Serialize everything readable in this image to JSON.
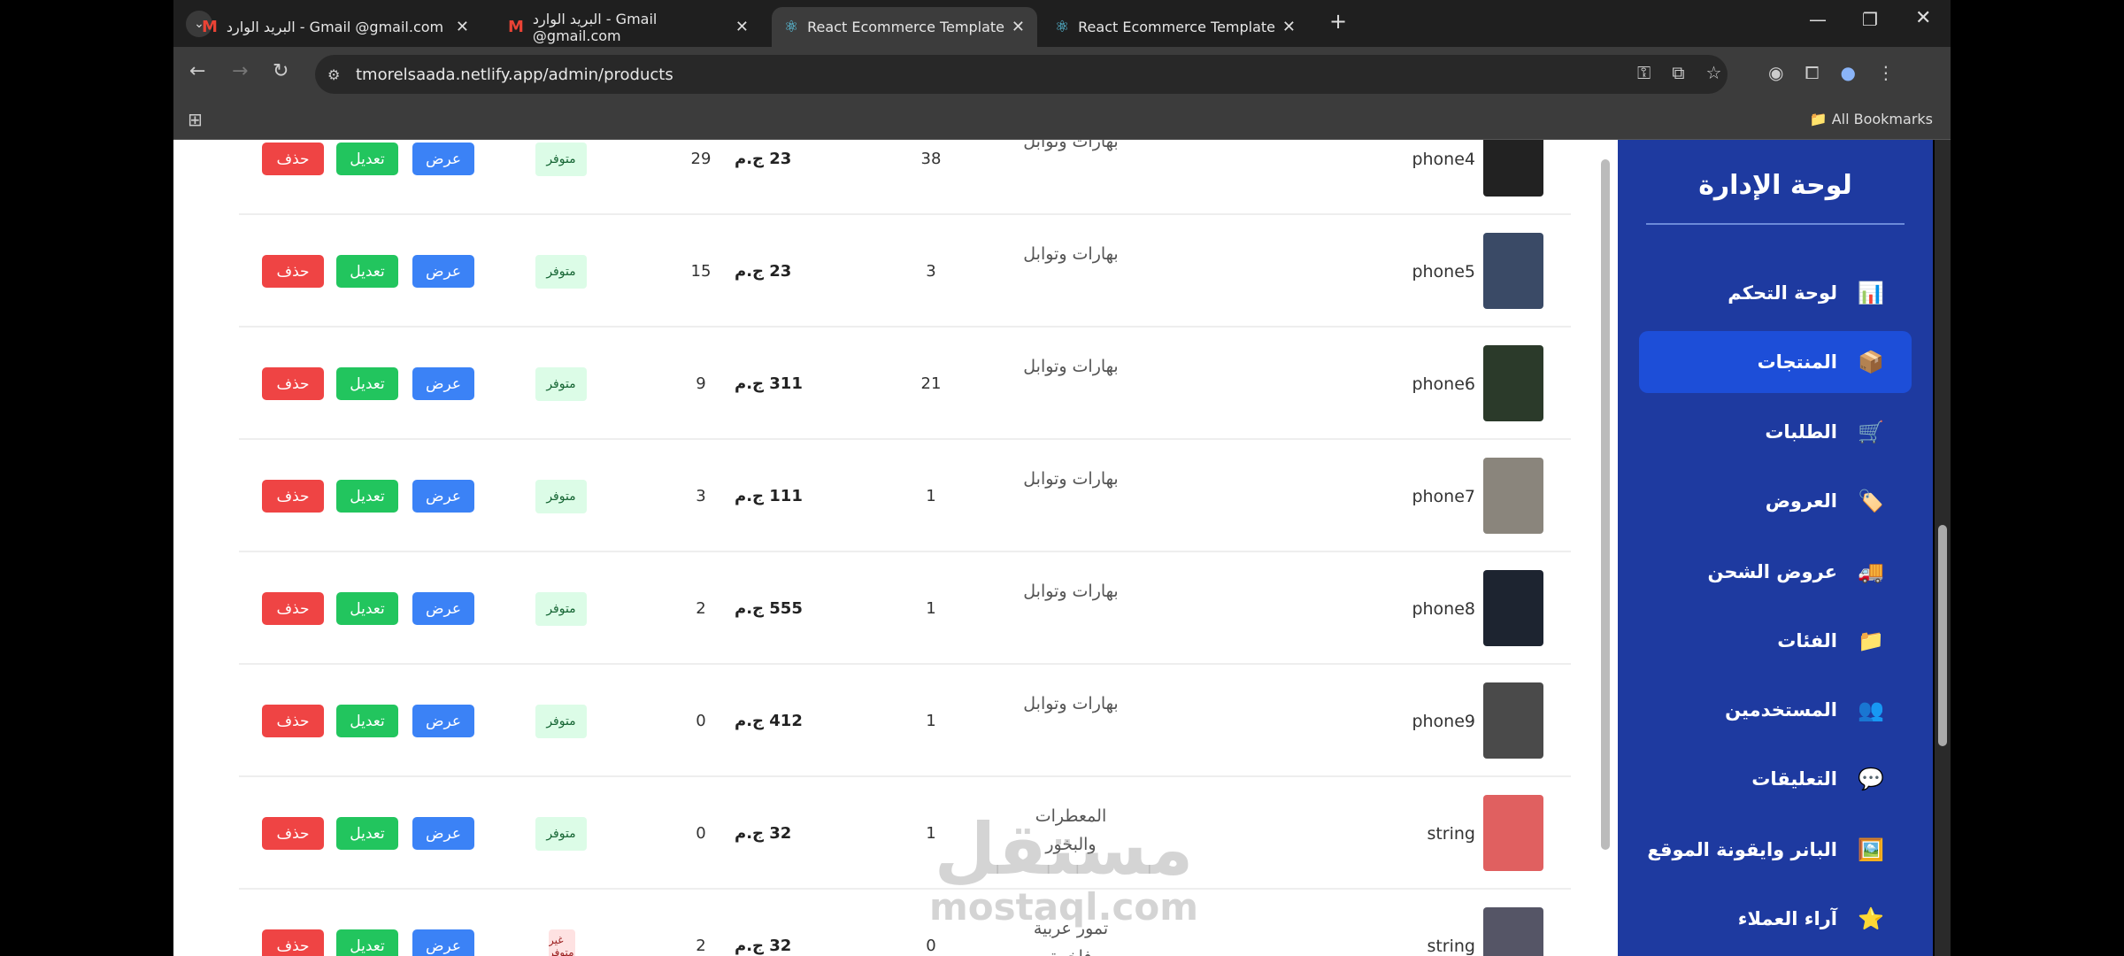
{
  "browser": {
    "tabs": [
      {
        "title": "البريد الوارد - Gmail ‎‎@gmail.com",
        "icon": "gmail-icon",
        "active": false
      },
      {
        "title": "البريد الوارد - Gmail ‎‎@gmail.com",
        "icon": "gmail-icon",
        "active": false
      },
      {
        "title": "React Ecommerce Template",
        "icon": "react-icon",
        "active": true
      },
      {
        "title": "React Ecommerce Template",
        "icon": "react-icon",
        "active": false
      }
    ],
    "url": "tmorelsaada.netlify.app/admin/products",
    "all_bookmarks": "All Bookmarks"
  },
  "sidebar": {
    "title": "لوحة الإدارة",
    "items": [
      {
        "label": "لوحة التحكم",
        "icon": "📊",
        "active": false
      },
      {
        "label": "المنتجات",
        "icon": "📦",
        "active": true
      },
      {
        "label": "الطلبات",
        "icon": "🛒",
        "active": false
      },
      {
        "label": "العروض",
        "icon": "🏷️",
        "active": false
      },
      {
        "label": "عروض الشحن",
        "icon": "🚚",
        "active": false
      },
      {
        "label": "الفئات",
        "icon": "📁",
        "active": false
      },
      {
        "label": "المستخدمين",
        "icon": "👥",
        "active": false
      },
      {
        "label": "التعليقات",
        "icon": "💬",
        "active": false
      },
      {
        "label": "البانر وايقونة الموقع",
        "icon": "🖼️",
        "active": false
      },
      {
        "label": "آراء العملاء",
        "icon": "⭐",
        "active": false
      }
    ],
    "accent": "#1e3aa0",
    "active_color": "#1d4ed8"
  },
  "table": {
    "actions": {
      "view": "عرض",
      "edit": "تعديل",
      "delete": "حذف"
    },
    "rows": [
      {
        "name": "phone4",
        "category": "بهارات وتوابل",
        "stock": "38",
        "price": "23 ج.م",
        "sold": "29",
        "status": "متوفر",
        "thumb": "#222"
      },
      {
        "name": "phone5",
        "category": "بهارات وتوابل",
        "stock": "3",
        "price": "23 ج.م",
        "sold": "15",
        "status": "متوفر",
        "thumb": "#3a4a66"
      },
      {
        "name": "phone6",
        "category": "بهارات وتوابل",
        "stock": "21",
        "price": "311 ج.م",
        "sold": "9",
        "status": "متوفر",
        "thumb": "#2b3a2a"
      },
      {
        "name": "phone7",
        "category": "بهارات وتوابل",
        "stock": "1",
        "price": "111 ج.م",
        "sold": "3",
        "status": "متوفر",
        "thumb": "#8a857c"
      },
      {
        "name": "phone8",
        "category": "بهارات وتوابل",
        "stock": "1",
        "price": "555 ج.م",
        "sold": "2",
        "status": "متوفر",
        "thumb": "#1d2430"
      },
      {
        "name": "phone9",
        "category": "بهارات وتوابل",
        "stock": "1",
        "price": "412 ج.م",
        "sold": "0",
        "status": "متوفر",
        "thumb": "#4a4a4a"
      },
      {
        "name": "string",
        "category": "المعطرات والبخور",
        "stock": "1",
        "price": "32 ج.م",
        "sold": "0",
        "status": "متوفر",
        "thumb": "#e06060"
      },
      {
        "name": "string",
        "category": "تمور عربية فاخرة",
        "stock": "0",
        "price": "32 ج.م",
        "sold": "2",
        "status": "غير متوفر",
        "thumb": "#556"
      }
    ]
  },
  "watermark": {
    "arabic": "مستقل",
    "latin": "mostaql.com"
  }
}
